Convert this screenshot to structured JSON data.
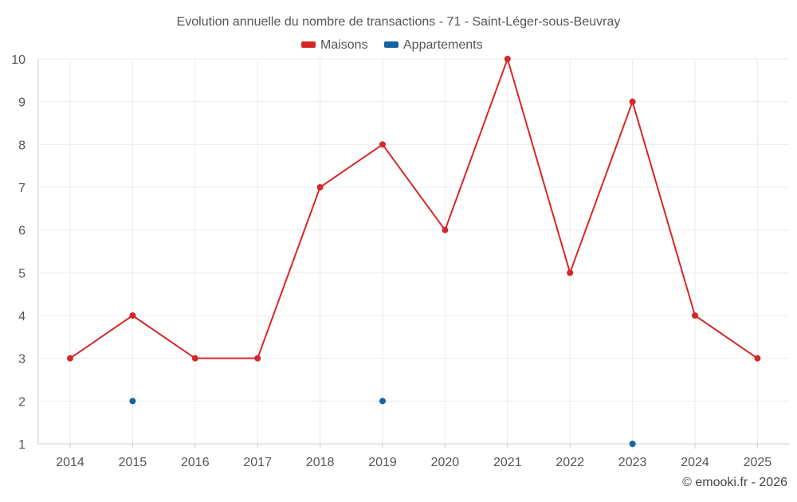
{
  "chart_data": {
    "type": "line",
    "title": "Evolution annuelle du nombre de transactions - 71 - Saint-Léger-sous-Beuvray",
    "categories": [
      "2014",
      "2015",
      "2016",
      "2017",
      "2018",
      "2019",
      "2020",
      "2021",
      "2022",
      "2023",
      "2024",
      "2025"
    ],
    "ylim": [
      1,
      10
    ],
    "yticks": [
      1,
      2,
      3,
      4,
      5,
      6,
      7,
      8,
      9,
      10
    ],
    "grid": true,
    "legend_position": "top-center",
    "series": [
      {
        "name": "Maisons",
        "color": "#d62728",
        "line": true,
        "values": [
          3,
          4,
          3,
          3,
          7,
          8,
          6,
          10,
          5,
          9,
          4,
          3
        ]
      },
      {
        "name": "Appartements",
        "color": "#1565a0",
        "line": false,
        "values": [
          null,
          2,
          null,
          null,
          null,
          2,
          null,
          null,
          null,
          1,
          null,
          null
        ]
      }
    ],
    "credit": "© emooki.fr - 2026"
  }
}
